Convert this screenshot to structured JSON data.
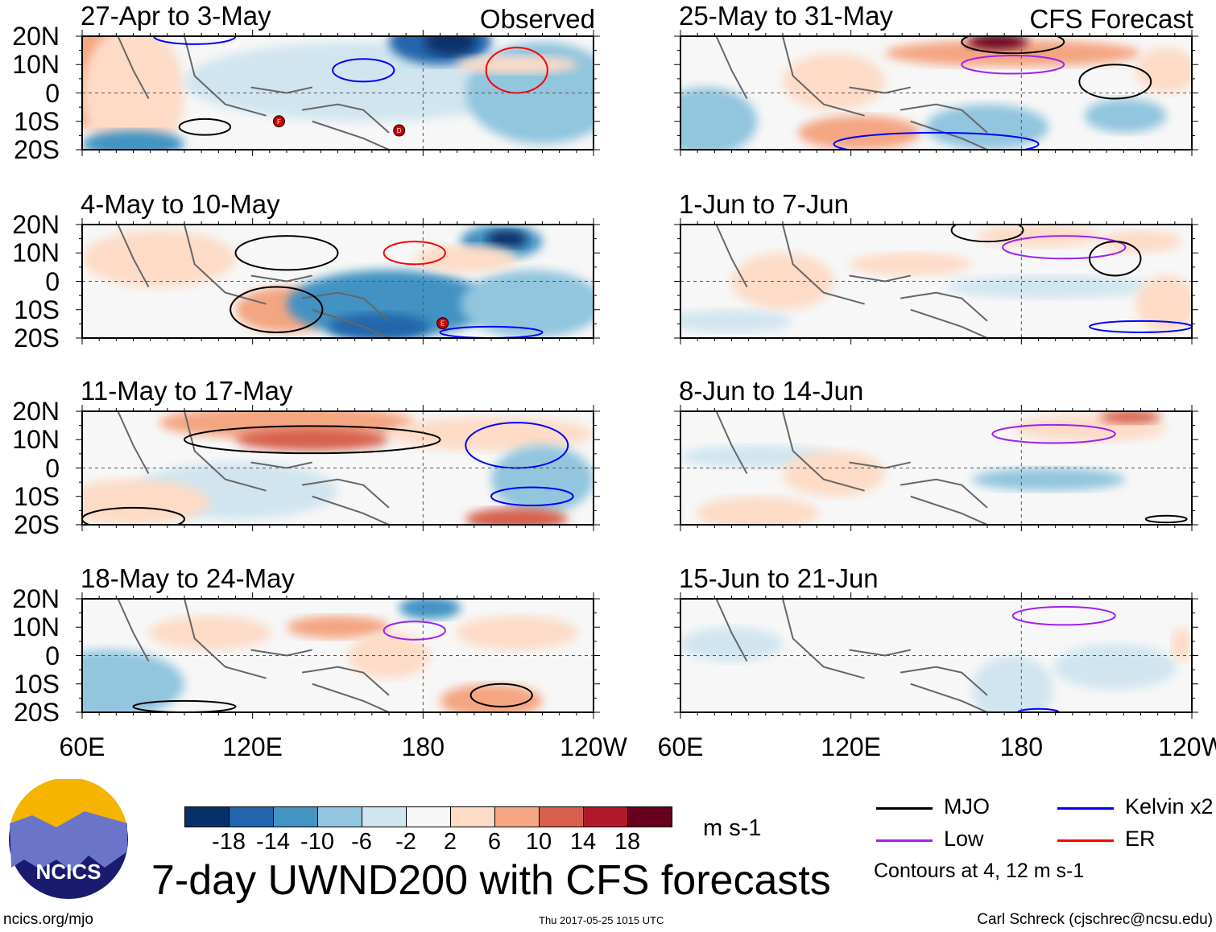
{
  "chart_data": {
    "type": "heatmap",
    "title": "7-day UWND200 with CFS forecasts",
    "units": "m s-1",
    "xlabel": "",
    "ylabel": "",
    "x_ticks": [
      "60E",
      "120E",
      "180",
      "120W"
    ],
    "y_ticks": [
      "20N",
      "10N",
      "0",
      "10S",
      "20S"
    ],
    "xlim": [
      "60E",
      "120W"
    ],
    "ylim": [
      "20S",
      "20N"
    ],
    "column_labels": [
      "Observed",
      "CFS Forecast"
    ],
    "panels": [
      {
        "title": "27-Apr to 3-May",
        "source": "Observed",
        "storms": [
          "F",
          "D"
        ]
      },
      {
        "title": "4-May to 10-May",
        "source": "Observed",
        "storms": [
          "E"
        ]
      },
      {
        "title": "11-May to 17-May",
        "source": "Observed",
        "storms": []
      },
      {
        "title": "18-May to 24-May",
        "source": "Observed",
        "storms": []
      },
      {
        "title": "25-May to 31-May",
        "source": "CFS Forecast",
        "storms": []
      },
      {
        "title": "1-Jun to 7-Jun",
        "source": "CFS Forecast",
        "storms": []
      },
      {
        "title": "8-Jun to 14-Jun",
        "source": "CFS Forecast",
        "storms": []
      },
      {
        "title": "15-Jun to 21-Jun",
        "source": "CFS Forecast",
        "storms": []
      }
    ],
    "colorbar": {
      "ticks": [
        "-18",
        "-14",
        "-10",
        "-6",
        "-2",
        "2",
        "6",
        "10",
        "14",
        "18"
      ],
      "colors": [
        "#08306b",
        "#2166ac",
        "#4393c3",
        "#92c5de",
        "#d1e5f0",
        "#f7f7f7",
        "#fddbc7",
        "#f4a582",
        "#d6604d",
        "#b2182b",
        "#67001f"
      ],
      "units": "m s-1"
    },
    "legend": {
      "items": [
        {
          "label": "MJO",
          "color": "#000000"
        },
        {
          "label": "Kelvin x2",
          "color": "#0000ff"
        },
        {
          "label": "Low",
          "color": "#a020f0"
        },
        {
          "label": "ER",
          "color": "#ff0000"
        }
      ],
      "note": "Contours at 4, 12 m s-1"
    }
  },
  "footer": {
    "logo_text": "NCICS",
    "url": "ncics.org/mjo",
    "timestamp": "Thu 2017-05-25 1015 UTC",
    "author": "Carl Schreck (cjschrec@ncsu.edu)"
  }
}
